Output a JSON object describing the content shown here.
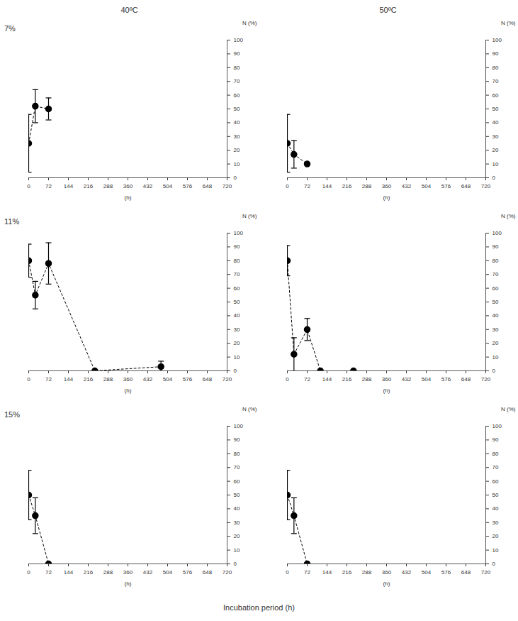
{
  "columns": [
    "40ºC",
    "50ºC"
  ],
  "rows": [
    "7%",
    "11%",
    "15%"
  ],
  "x_label": "Incubation period (h)",
  "chart_data": [
    {
      "type": "line",
      "xlabel": "(h)",
      "ylabel": "N (%)",
      "x": [
        0,
        24,
        72
      ],
      "values": [
        25,
        52,
        50
      ],
      "error": [
        21,
        12,
        8
      ],
      "xlim": [
        0,
        720
      ],
      "xticks": [
        0,
        72,
        144,
        216,
        288,
        360,
        432,
        504,
        576,
        648,
        720
      ],
      "ylim": [
        0,
        100
      ],
      "yticks": [
        0,
        10,
        20,
        30,
        40,
        50,
        60,
        70,
        80,
        90,
        100
      ],
      "color": "#000000",
      "marker": "circle",
      "line_style": "dashed"
    },
    {
      "type": "line",
      "xlabel": "(h)",
      "ylabel": "N (%)",
      "x": [
        0,
        24,
        72
      ],
      "values": [
        25,
        17,
        10
      ],
      "error": [
        21,
        10,
        null
      ],
      "xlim": [
        0,
        720
      ],
      "xticks": [
        0,
        72,
        144,
        216,
        288,
        360,
        432,
        504,
        576,
        648,
        720
      ],
      "ylim": [
        0,
        100
      ],
      "yticks": [
        0,
        10,
        20,
        30,
        40,
        50,
        60,
        70,
        80,
        90,
        100
      ],
      "color": "#000000",
      "marker": "circle",
      "line_style": "dashed"
    },
    {
      "type": "line",
      "xlabel": "(h)",
      "ylabel": "N (%)",
      "x": [
        0,
        24,
        72,
        240,
        480
      ],
      "values": [
        80,
        55,
        78,
        0,
        3
      ],
      "error": [
        12,
        10,
        15,
        null,
        4
      ],
      "xlim": [
        0,
        720
      ],
      "xticks": [
        0,
        72,
        144,
        216,
        288,
        360,
        432,
        504,
        576,
        648,
        720
      ],
      "ylim": [
        0,
        100
      ],
      "yticks": [
        0,
        10,
        20,
        30,
        40,
        50,
        60,
        70,
        80,
        90,
        100
      ],
      "color": "#000000",
      "marker": "circle",
      "line_style": "dashed"
    },
    {
      "type": "line",
      "xlabel": "(h)",
      "ylabel": "N (%)",
      "x": [
        0,
        24,
        72,
        120,
        240
      ],
      "values": [
        80,
        12,
        30,
        0,
        0
      ],
      "error": [
        11,
        12,
        8,
        null,
        null
      ],
      "xlim": [
        0,
        720
      ],
      "xticks": [
        0,
        72,
        144,
        216,
        288,
        360,
        432,
        504,
        576,
        648,
        720
      ],
      "ylim": [
        0,
        100
      ],
      "yticks": [
        0,
        10,
        20,
        30,
        40,
        50,
        60,
        70,
        80,
        90,
        100
      ],
      "color": "#000000",
      "marker": "circle",
      "line_style": "dashed"
    },
    {
      "type": "line",
      "xlabel": "(h)",
      "ylabel": "N (%)",
      "x": [
        0,
        24,
        72
      ],
      "values": [
        50,
        35,
        0
      ],
      "error": [
        18,
        13,
        null
      ],
      "xlim": [
        0,
        720
      ],
      "xticks": [
        0,
        72,
        144,
        216,
        288,
        360,
        432,
        504,
        576,
        648,
        720
      ],
      "ylim": [
        0,
        100
      ],
      "yticks": [
        0,
        10,
        20,
        30,
        40,
        50,
        60,
        70,
        80,
        90,
        100
      ],
      "color": "#000000",
      "marker": "circle",
      "line_style": "dashed"
    },
    {
      "type": "line",
      "xlabel": "(h)",
      "ylabel": "N (%)",
      "x": [
        0,
        24,
        72
      ],
      "values": [
        50,
        35,
        0
      ],
      "error": [
        18,
        13,
        null
      ],
      "xlim": [
        0,
        720
      ],
      "xticks": [
        0,
        72,
        144,
        216,
        288,
        360,
        432,
        504,
        576,
        648,
        720
      ],
      "ylim": [
        0,
        100
      ],
      "yticks": [
        0,
        10,
        20,
        30,
        40,
        50,
        60,
        70,
        80,
        90,
        100
      ],
      "color": "#000000",
      "marker": "circle",
      "line_style": "dashed"
    }
  ]
}
